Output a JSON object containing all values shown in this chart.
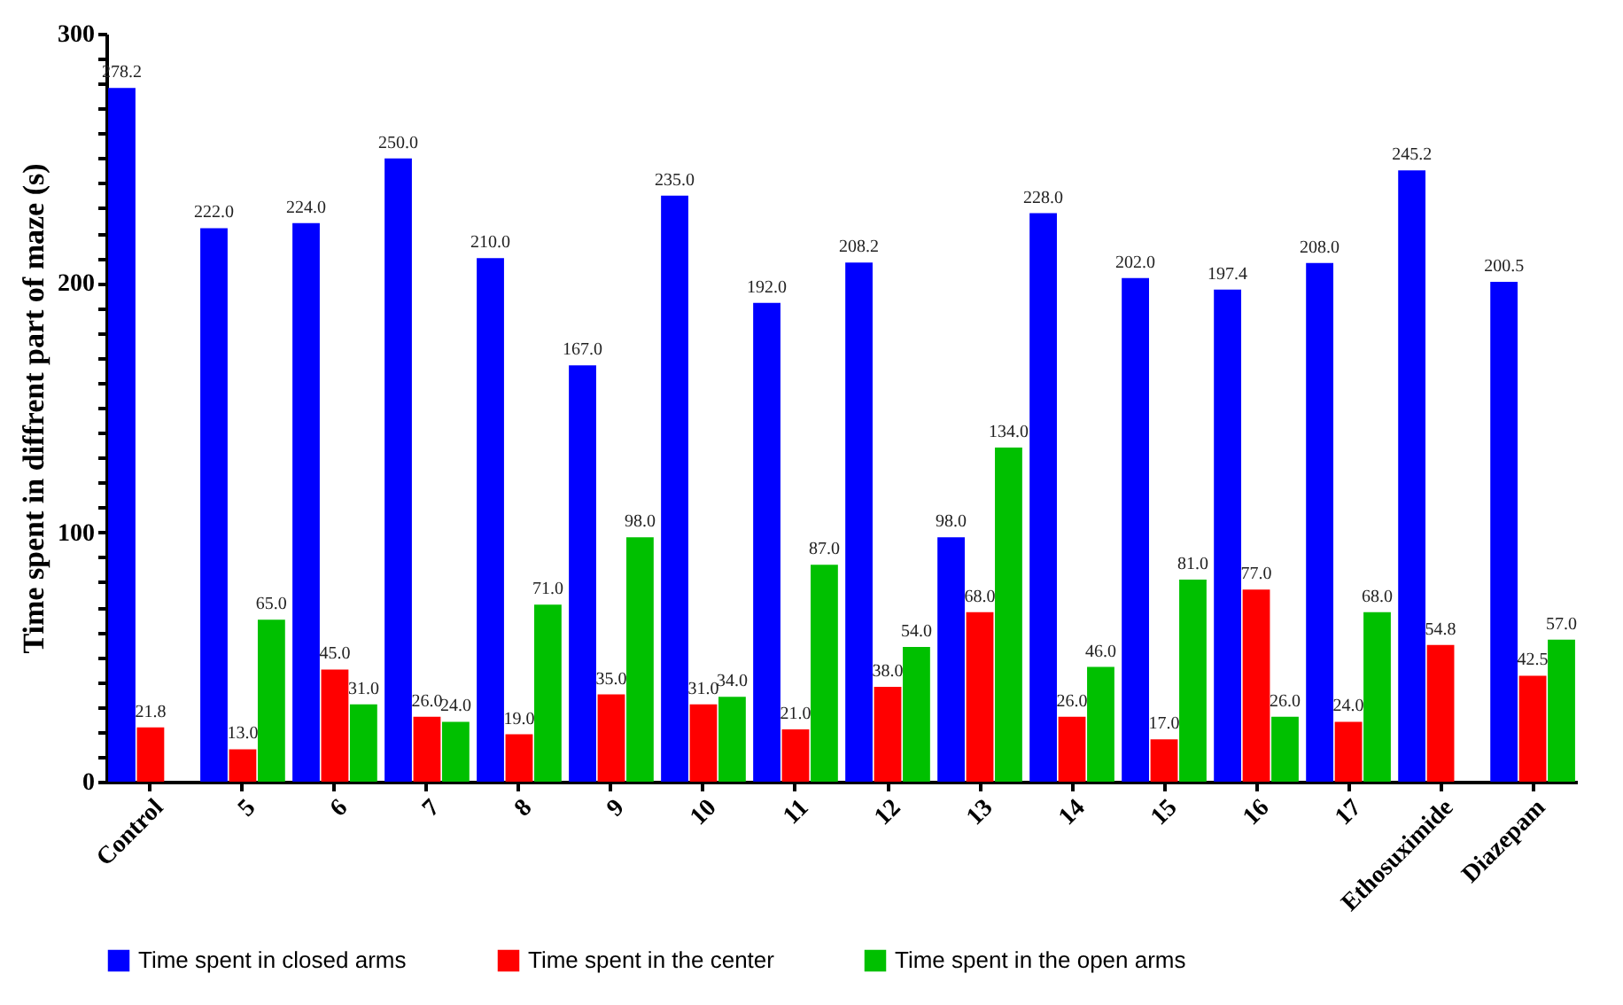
{
  "chart_data": {
    "type": "bar",
    "ylabel": "Time spent in diffrent part of maze (s)",
    "categories": [
      "Control",
      "5",
      "6",
      "7",
      "8",
      "9",
      "10",
      "11",
      "12",
      "13",
      "14",
      "15",
      "16",
      "17",
      "Ethosuximide",
      "Diazepam"
    ],
    "series": [
      {
        "name": "Time spent in closed arms",
        "color": "#0000ff",
        "values": [
          278.2,
          222.0,
          224.0,
          250.0,
          210.0,
          167.0,
          235.0,
          192.0,
          208.2,
          98.0,
          228.0,
          202.0,
          197.4,
          208.0,
          245.2,
          200.5
        ],
        "value_labels": [
          "278.2",
          "222.0",
          "224.0",
          "250.0",
          "210.0",
          "167.0",
          "235.0",
          "192.0",
          "208.2",
          "98.0",
          "228.0",
          "202.0",
          "197.4",
          "208.0",
          "245.2",
          "200.5"
        ]
      },
      {
        "name": "Time spent in the center",
        "color": "#ff0000",
        "values": [
          21.8,
          13.0,
          45.0,
          26.0,
          19.0,
          35.0,
          31.0,
          21.0,
          38.0,
          68.0,
          26.0,
          17.0,
          77.0,
          24.0,
          54.8,
          42.5
        ],
        "value_labels": [
          "21.8",
          "13.0",
          "45.0",
          "26.0",
          "19.0",
          "35.0",
          "31.0",
          "21.0",
          "38.0",
          "68.0",
          "26.0",
          "17.0",
          "77.0",
          "24.0",
          "54.8",
          "42.5"
        ]
      },
      {
        "name": "Time spent in the open arms",
        "color": "#00c000",
        "values": [
          null,
          65.0,
          31.0,
          24.0,
          71.0,
          98.0,
          34.0,
          87.0,
          54.0,
          134.0,
          46.0,
          81.0,
          26.0,
          68.0,
          null,
          57.0
        ],
        "value_labels": [
          null,
          "65.0",
          "31.0",
          "24.0",
          "71.0",
          "98.0",
          "34.0",
          "87.0",
          "54.0",
          "134.0",
          "46.0",
          "81.0",
          "26.0",
          "68.0",
          null,
          "57.0"
        ]
      }
    ],
    "ylim": [
      0,
      300
    ],
    "yticks": [
      0,
      {
        "value": 10,
        "label": null
      },
      {
        "value": 20,
        "label": null
      },
      {
        "value": 30,
        "label": null
      },
      {
        "value": 40,
        "label": null
      },
      {
        "value": 50,
        "label": null
      },
      {
        "value": 60,
        "label": null
      },
      {
        "value": 70,
        "label": null
      },
      {
        "value": 80,
        "label": null
      },
      {
        "value": 90,
        "label": null
      },
      100,
      {
        "value": 110,
        "label": null
      },
      {
        "value": 120,
        "label": null
      },
      {
        "value": 130,
        "label": null
      },
      {
        "value": 140,
        "label": null
      },
      {
        "value": 150,
        "label": null
      },
      {
        "value": 160,
        "label": null
      },
      {
        "value": 170,
        "label": null
      },
      {
        "value": 180,
        "label": null
      },
      {
        "value": 190,
        "label": null
      },
      200,
      {
        "value": 210,
        "label": null
      },
      {
        "value": 220,
        "label": null
      },
      {
        "value": 230,
        "label": null
      },
      {
        "value": 240,
        "label": null
      },
      {
        "value": 250,
        "label": null
      },
      {
        "value": 260,
        "label": null
      },
      {
        "value": 270,
        "label": null
      },
      {
        "value": 280,
        "label": null
      },
      {
        "value": 290,
        "label": null
      },
      300
    ],
    "legend": "bottom",
    "grid": false
  }
}
